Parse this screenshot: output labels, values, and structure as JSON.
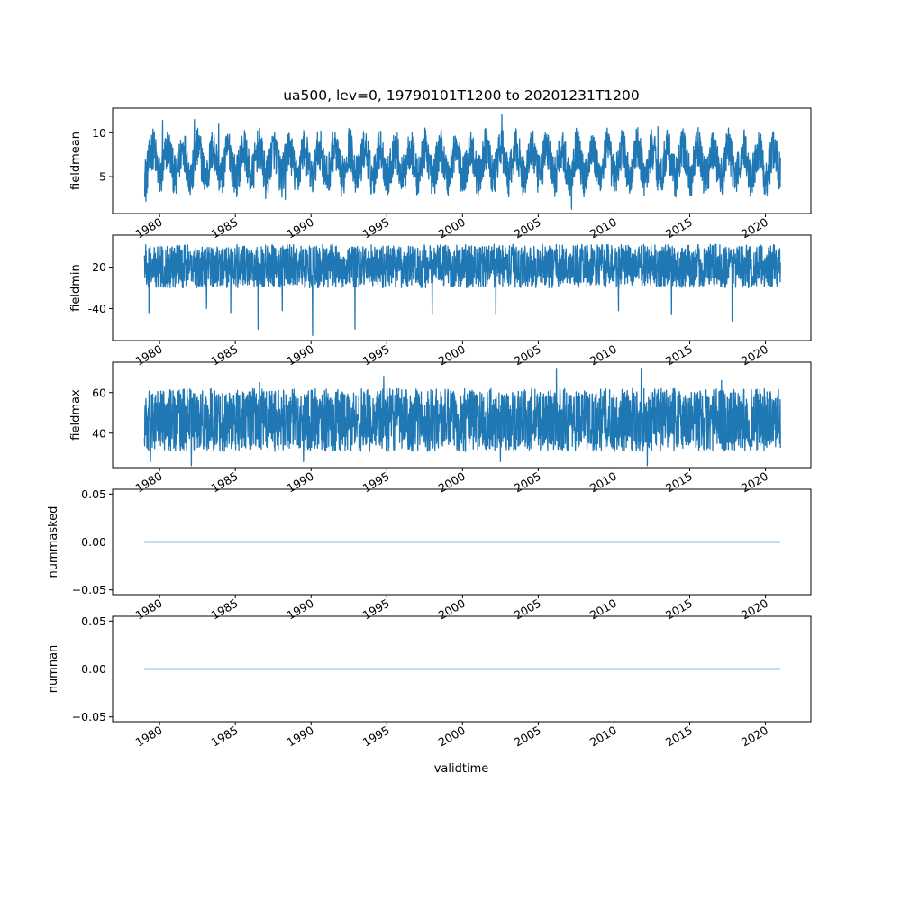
{
  "figure": {
    "title": "ua500, lev=0, 19790101T1200 to 20201231T1200",
    "xlabel": "validtime"
  },
  "colors": {
    "line": "#1f77b4",
    "axis": "#000000",
    "background": "#ffffff"
  },
  "chart_data": [
    {
      "type": "line",
      "ylabel": "fieldmean",
      "x_range": [
        "1979-01-01",
        "2020-12-31"
      ],
      "xlim": [
        1976.9,
        2023.0
      ],
      "ylim": [
        0.8,
        12.8
      ],
      "yticks": [
        5,
        10
      ],
      "xticks": [
        "1980",
        "1985",
        "1990",
        "1995",
        "2000",
        "2005",
        "2010",
        "2015",
        "2020"
      ],
      "series": [
        {
          "seasonal_low": [
            2.5,
            5.0
          ],
          "seasonal_high": [
            9.0,
            11.0
          ],
          "overall_min": 1.3,
          "overall_max": 12.1,
          "x": [
            1979.1,
            1980.2,
            1981.1,
            1982.3,
            1983.9,
            1987.0,
            1988.3,
            1992.5,
            2002.6,
            2007.2,
            2012.9,
            2020.9
          ],
          "y": [
            2.2,
            11.4,
            3.1,
            11.5,
            11.0,
            2.5,
            2.4,
            10.5,
            12.1,
            1.3,
            10.7,
            3.6
          ]
        }
      ]
    },
    {
      "type": "line",
      "ylabel": "fieldmin",
      "x_range": [
        "1979-01-01",
        "2020-12-31"
      ],
      "xlim": [
        1976.9,
        2023.0
      ],
      "ylim": [
        -55.5,
        -4.5
      ],
      "yticks": [
        -40,
        -20
      ],
      "xticks": [
        "1980",
        "1985",
        "1990",
        "1995",
        "2000",
        "2005",
        "2010",
        "2015",
        "2020"
      ],
      "series": [
        {
          "band_low": -30,
          "band_high": -9,
          "overall_min": -53,
          "overall_max": -8,
          "x": [
            1979.3,
            1983.1,
            1984.7,
            1986.5,
            1988.1,
            1990.1,
            1992.9,
            1998.0,
            2002.2,
            2010.3,
            2013.8,
            2017.8
          ],
          "y": [
            -42,
            -40,
            -42,
            -50,
            -41,
            -53,
            -50,
            -43,
            -43,
            -41,
            -43,
            -46
          ]
        }
      ]
    },
    {
      "type": "line",
      "ylabel": "fieldmax",
      "x_range": [
        "1979-01-01",
        "2020-12-31"
      ],
      "xlim": [
        1976.9,
        2023.0
      ],
      "ylim": [
        23,
        75
      ],
      "yticks": [
        40,
        60
      ],
      "xticks": [
        "1980",
        "1985",
        "1990",
        "1995",
        "2000",
        "2005",
        "2010",
        "2015",
        "2020"
      ],
      "series": [
        {
          "band_low": 31,
          "band_high": 62,
          "overall_min": 24,
          "overall_max": 72,
          "x": [
            1979.4,
            1982.1,
            1986.6,
            1989.5,
            1994.8,
            2002.5,
            2006.2,
            2011.8,
            2012.2,
            2017.1,
            2020.0
          ],
          "y": [
            26,
            24,
            65,
            26,
            68,
            26,
            72,
            72,
            24,
            66,
            34
          ]
        }
      ]
    },
    {
      "type": "line",
      "ylabel": "nummasked",
      "x": [
        "1979-01-01",
        "2020-12-31"
      ],
      "xlim": [
        1976.9,
        2023.0
      ],
      "ylim": [
        -0.055,
        0.055
      ],
      "yticks": [
        -0.05,
        0.0,
        0.05
      ],
      "ytick_labels": [
        "−0.05",
        "0.00",
        "0.05"
      ],
      "xticks": [
        "1980",
        "1985",
        "1990",
        "1995",
        "2000",
        "2005",
        "2010",
        "2015",
        "2020"
      ],
      "series": [
        {
          "values": [
            0,
            0
          ]
        }
      ]
    },
    {
      "type": "line",
      "ylabel": "numnan",
      "xlabel": "validtime",
      "x": [
        "1979-01-01",
        "2020-12-31"
      ],
      "xlim": [
        1976.9,
        2023.0
      ],
      "ylim": [
        -0.055,
        0.055
      ],
      "yticks": [
        -0.05,
        0.0,
        0.05
      ],
      "ytick_labels": [
        "−0.05",
        "0.00",
        "0.05"
      ],
      "xticks": [
        "1980",
        "1985",
        "1990",
        "1995",
        "2000",
        "2005",
        "2010",
        "2015",
        "2020"
      ],
      "series": [
        {
          "values": [
            0,
            0
          ]
        }
      ]
    }
  ]
}
